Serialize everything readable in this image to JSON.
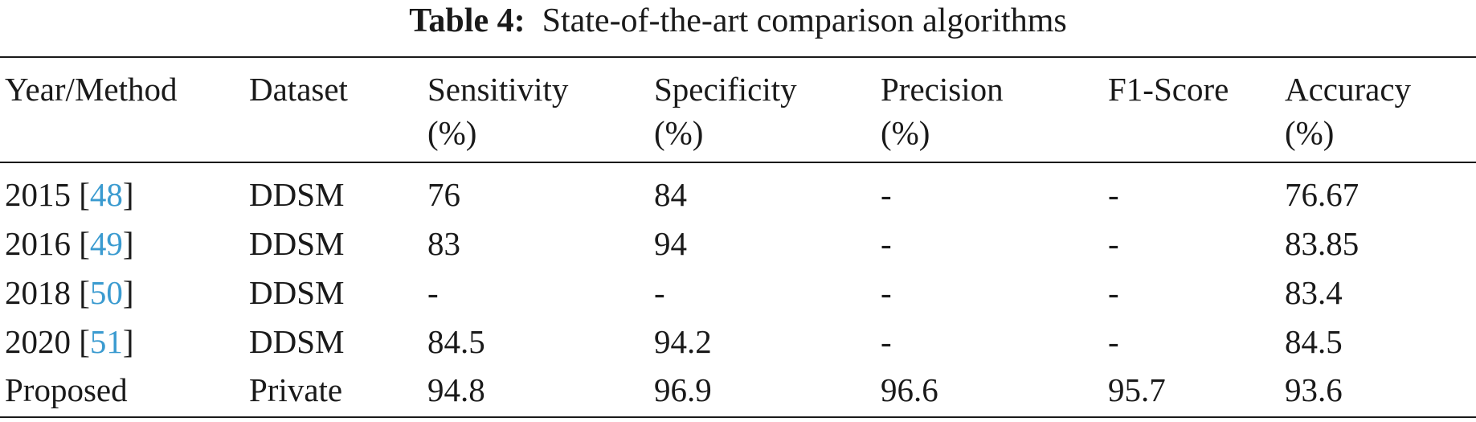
{
  "caption": {
    "label": "Table 4:",
    "text": "State-of-the-art comparison algorithms"
  },
  "headers": [
    {
      "line1": "Year/Method",
      "line2": ""
    },
    {
      "line1": "Dataset",
      "line2": ""
    },
    {
      "line1": "Sensitivity",
      "line2": "(%)"
    },
    {
      "line1": "Specificity",
      "line2": "(%)"
    },
    {
      "line1": "Precision",
      "line2": "(%)"
    },
    {
      "line1": "F1-Score",
      "line2": ""
    },
    {
      "line1": "Accuracy",
      "line2": "(%)"
    }
  ],
  "rows": [
    {
      "year": "2015",
      "ref": "48",
      "dataset": "DDSM",
      "sensitivity": "76",
      "specificity": "84",
      "precision": "-",
      "f1": "-",
      "accuracy": "76.67"
    },
    {
      "year": "2016",
      "ref": "49",
      "dataset": "DDSM",
      "sensitivity": "83",
      "specificity": "94",
      "precision": "-",
      "f1": "-",
      "accuracy": "83.85"
    },
    {
      "year": "2018",
      "ref": "50",
      "dataset": "DDSM",
      "sensitivity": "-",
      "specificity": "-",
      "precision": "-",
      "f1": "-",
      "accuracy": "83.4"
    },
    {
      "year": "2020",
      "ref": "51",
      "dataset": "DDSM",
      "sensitivity": "84.5",
      "specificity": "94.2",
      "precision": "-",
      "f1": "-",
      "accuracy": "84.5"
    },
    {
      "year": "Proposed",
      "ref": "",
      "dataset": "Private",
      "sensitivity": "94.8",
      "specificity": "96.9",
      "precision": "96.6",
      "f1": "95.7",
      "accuracy": "93.6"
    }
  ],
  "colors": {
    "text": "#1a1a1a",
    "reference_link": "#3b9bd0"
  }
}
